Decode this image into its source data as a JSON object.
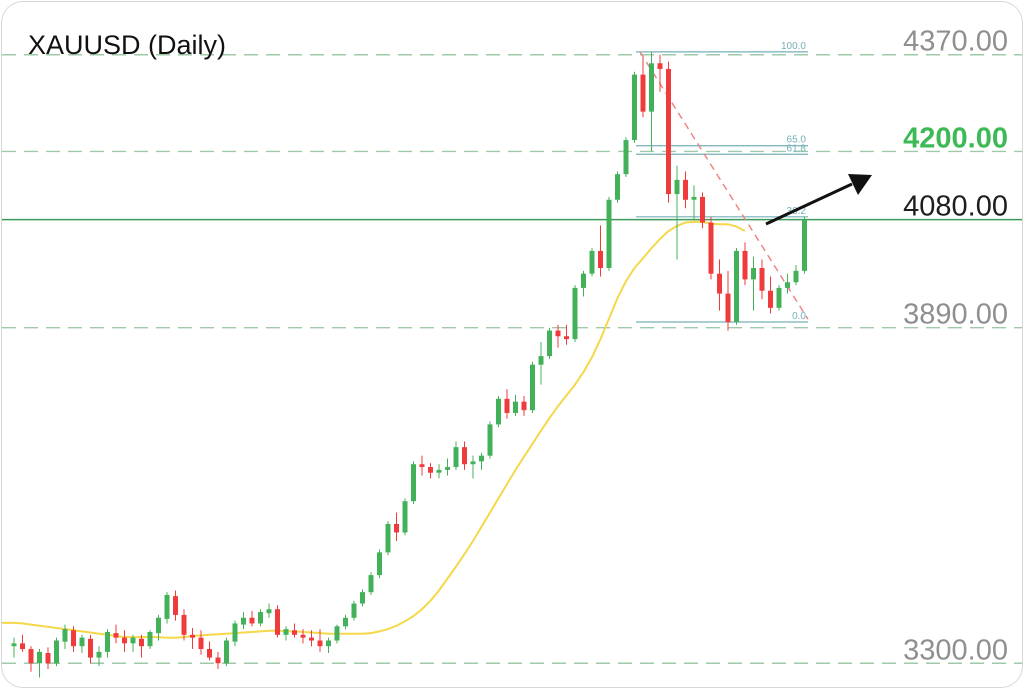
{
  "chart_data": {
    "type": "candlestick",
    "title": "XAUUSD (Daily)",
    "ylim": [
      3260,
      4410
    ],
    "grid": false,
    "levels": [
      {
        "value": 4370,
        "label": "4370.00",
        "color": "#8f8f8f",
        "style": "dashed"
      },
      {
        "value": 4200,
        "label": "4200.00",
        "color": "#3dba55",
        "style": "dashed"
      },
      {
        "value": 4080,
        "label": "4080.00",
        "color": "#1e1e1e",
        "style": "solid"
      },
      {
        "value": 3890,
        "label": "3890.00",
        "color": "#8f8f8f",
        "style": "dashed"
      },
      {
        "value": 3300,
        "label": "3300.00",
        "color": "#8f8f8f",
        "style": "dashed"
      }
    ],
    "fibonacci": [
      {
        "ratio": "100.0",
        "value": 4375
      },
      {
        "ratio": "65.0",
        "value": 4210
      },
      {
        "ratio": "61.8",
        "value": 4195
      },
      {
        "ratio": "38.2",
        "value": 4085
      },
      {
        "ratio": "0.0",
        "value": 3900
      }
    ],
    "colors": {
      "up": "#43b15a",
      "down": "#ef3b3b",
      "ma": "#f5d84a",
      "fib": "#74b0b8",
      "trend": "#ef7f7f",
      "arrow": "#111111",
      "level_dash": "#9fc9a9",
      "level_solid": "#3d9a5a"
    },
    "ma": [
      3371,
      3370,
      3368,
      3366,
      3364,
      3362,
      3360,
      3358,
      3356,
      3354,
      3352,
      3350,
      3348,
      3346,
      3346,
      3346,
      3346,
      3346,
      3345,
      3345,
      3346,
      3348,
      3349,
      3350,
      3351,
      3352,
      3353,
      3354,
      3355,
      3356,
      3357,
      3357,
      3356,
      3356,
      3355,
      3354,
      3353,
      3352,
      3352,
      3352,
      3352,
      3352,
      3353,
      3356,
      3360,
      3366,
      3374,
      3383,
      3395,
      3410,
      3428,
      3449,
      3470,
      3492,
      3515,
      3540,
      3565,
      3590,
      3615,
      3640,
      3663,
      3686,
      3709,
      3731,
      3752,
      3771,
      3790,
      3812,
      3838,
      3870,
      3906,
      3942,
      3972,
      3995,
      4012,
      4030,
      4046,
      4060,
      4069,
      4075,
      4076,
      4076,
      4073,
      4072,
      4072,
      4068,
      4060
    ],
    "candles": [
      {
        "o": 3330,
        "h": 3345,
        "l": 3310,
        "c": 3335
      },
      {
        "o": 3335,
        "h": 3350,
        "l": 3320,
        "c": 3325
      },
      {
        "o": 3325,
        "h": 3330,
        "l": 3285,
        "c": 3300
      },
      {
        "o": 3300,
        "h": 3325,
        "l": 3275,
        "c": 3320
      },
      {
        "o": 3318,
        "h": 3328,
        "l": 3290,
        "c": 3300
      },
      {
        "o": 3300,
        "h": 3345,
        "l": 3295,
        "c": 3340
      },
      {
        "o": 3338,
        "h": 3368,
        "l": 3325,
        "c": 3360
      },
      {
        "o": 3358,
        "h": 3365,
        "l": 3320,
        "c": 3330
      },
      {
        "o": 3330,
        "h": 3350,
        "l": 3318,
        "c": 3345
      },
      {
        "o": 3343,
        "h": 3350,
        "l": 3300,
        "c": 3310
      },
      {
        "o": 3310,
        "h": 3330,
        "l": 3295,
        "c": 3320
      },
      {
        "o": 3320,
        "h": 3360,
        "l": 3310,
        "c": 3355
      },
      {
        "o": 3353,
        "h": 3368,
        "l": 3335,
        "c": 3345
      },
      {
        "o": 3345,
        "h": 3358,
        "l": 3320,
        "c": 3335
      },
      {
        "o": 3335,
        "h": 3350,
        "l": 3320,
        "c": 3345
      },
      {
        "o": 3343,
        "h": 3350,
        "l": 3310,
        "c": 3330
      },
      {
        "o": 3330,
        "h": 3358,
        "l": 3325,
        "c": 3355
      },
      {
        "o": 3353,
        "h": 3385,
        "l": 3340,
        "c": 3380
      },
      {
        "o": 3378,
        "h": 3425,
        "l": 3370,
        "c": 3420
      },
      {
        "o": 3418,
        "h": 3428,
        "l": 3375,
        "c": 3385
      },
      {
        "o": 3385,
        "h": 3395,
        "l": 3340,
        "c": 3350
      },
      {
        "o": 3350,
        "h": 3362,
        "l": 3325,
        "c": 3345
      },
      {
        "o": 3345,
        "h": 3358,
        "l": 3315,
        "c": 3325
      },
      {
        "o": 3325,
        "h": 3338,
        "l": 3305,
        "c": 3310
      },
      {
        "o": 3310,
        "h": 3320,
        "l": 3290,
        "c": 3300
      },
      {
        "o": 3300,
        "h": 3345,
        "l": 3295,
        "c": 3340
      },
      {
        "o": 3338,
        "h": 3375,
        "l": 3330,
        "c": 3370
      },
      {
        "o": 3368,
        "h": 3390,
        "l": 3360,
        "c": 3380
      },
      {
        "o": 3380,
        "h": 3392,
        "l": 3365,
        "c": 3370
      },
      {
        "o": 3370,
        "h": 3395,
        "l": 3365,
        "c": 3390
      },
      {
        "o": 3388,
        "h": 3405,
        "l": 3380,
        "c": 3395
      },
      {
        "o": 3395,
        "h": 3402,
        "l": 3345,
        "c": 3350
      },
      {
        "o": 3350,
        "h": 3365,
        "l": 3340,
        "c": 3360
      },
      {
        "o": 3358,
        "h": 3370,
        "l": 3345,
        "c": 3350
      },
      {
        "o": 3350,
        "h": 3360,
        "l": 3335,
        "c": 3345
      },
      {
        "o": 3345,
        "h": 3358,
        "l": 3330,
        "c": 3340
      },
      {
        "o": 3340,
        "h": 3360,
        "l": 3320,
        "c": 3330
      },
      {
        "o": 3330,
        "h": 3345,
        "l": 3318,
        "c": 3340
      },
      {
        "o": 3340,
        "h": 3368,
        "l": 3335,
        "c": 3365
      },
      {
        "o": 3365,
        "h": 3385,
        "l": 3360,
        "c": 3380
      },
      {
        "o": 3380,
        "h": 3410,
        "l": 3375,
        "c": 3405
      },
      {
        "o": 3405,
        "h": 3430,
        "l": 3400,
        "c": 3425
      },
      {
        "o": 3425,
        "h": 3460,
        "l": 3420,
        "c": 3455
      },
      {
        "o": 3455,
        "h": 3500,
        "l": 3450,
        "c": 3495
      },
      {
        "o": 3495,
        "h": 3550,
        "l": 3490,
        "c": 3545
      },
      {
        "o": 3545,
        "h": 3565,
        "l": 3515,
        "c": 3530
      },
      {
        "o": 3530,
        "h": 3590,
        "l": 3525,
        "c": 3585
      },
      {
        "o": 3585,
        "h": 3655,
        "l": 3580,
        "c": 3650
      },
      {
        "o": 3650,
        "h": 3665,
        "l": 3630,
        "c": 3645
      },
      {
        "o": 3645,
        "h": 3652,
        "l": 3625,
        "c": 3635
      },
      {
        "o": 3635,
        "h": 3650,
        "l": 3625,
        "c": 3640
      },
      {
        "o": 3640,
        "h": 3660,
        "l": 3630,
        "c": 3645
      },
      {
        "o": 3645,
        "h": 3690,
        "l": 3640,
        "c": 3680
      },
      {
        "o": 3680,
        "h": 3690,
        "l": 3640,
        "c": 3650
      },
      {
        "o": 3650,
        "h": 3665,
        "l": 3625,
        "c": 3655
      },
      {
        "o": 3655,
        "h": 3670,
        "l": 3640,
        "c": 3665
      },
      {
        "o": 3665,
        "h": 3725,
        "l": 3660,
        "c": 3720
      },
      {
        "o": 3720,
        "h": 3770,
        "l": 3715,
        "c": 3765
      },
      {
        "o": 3765,
        "h": 3782,
        "l": 3730,
        "c": 3740
      },
      {
        "o": 3740,
        "h": 3772,
        "l": 3735,
        "c": 3760
      },
      {
        "o": 3760,
        "h": 3770,
        "l": 3735,
        "c": 3745
      },
      {
        "o": 3745,
        "h": 3830,
        "l": 3740,
        "c": 3825
      },
      {
        "o": 3825,
        "h": 3865,
        "l": 3790,
        "c": 3840
      },
      {
        "o": 3840,
        "h": 3890,
        "l": 3835,
        "c": 3885
      },
      {
        "o": 3885,
        "h": 3895,
        "l": 3855,
        "c": 3875
      },
      {
        "o": 3875,
        "h": 3895,
        "l": 3860,
        "c": 3870
      },
      {
        "o": 3870,
        "h": 3965,
        "l": 3865,
        "c": 3960
      },
      {
        "o": 3960,
        "h": 3990,
        "l": 3945,
        "c": 3985
      },
      {
        "o": 3985,
        "h": 4030,
        "l": 3980,
        "c": 4025
      },
      {
        "o": 4025,
        "h": 4070,
        "l": 3980,
        "c": 3995
      },
      {
        "o": 3995,
        "h": 4120,
        "l": 3990,
        "c": 4115
      },
      {
        "o": 4115,
        "h": 4165,
        "l": 4110,
        "c": 4160
      },
      {
        "o": 4160,
        "h": 4225,
        "l": 4155,
        "c": 4220
      },
      {
        "o": 4220,
        "h": 4340,
        "l": 4215,
        "c": 4335
      },
      {
        "o": 4335,
        "h": 4365,
        "l": 4260,
        "c": 4270
      },
      {
        "o": 4270,
        "h": 4375,
        "l": 4200,
        "c": 4355
      },
      {
        "o": 4355,
        "h": 4370,
        "l": 4305,
        "c": 4345
      },
      {
        "o": 4345,
        "h": 4358,
        "l": 4110,
        "c": 4125
      },
      {
        "o": 4125,
        "h": 4175,
        "l": 4010,
        "c": 4150
      },
      {
        "o": 4150,
        "h": 4165,
        "l": 4100,
        "c": 4115
      },
      {
        "o": 4115,
        "h": 4140,
        "l": 4080,
        "c": 4120
      },
      {
        "o": 4120,
        "h": 4128,
        "l": 4065,
        "c": 4075
      },
      {
        "o": 4075,
        "h": 4085,
        "l": 3975,
        "c": 3985
      },
      {
        "o": 3985,
        "h": 4010,
        "l": 3920,
        "c": 3950
      },
      {
        "o": 3950,
        "h": 3990,
        "l": 3885,
        "c": 3900
      },
      {
        "o": 3900,
        "h": 4030,
        "l": 3895,
        "c": 4025
      },
      {
        "o": 4025,
        "h": 4040,
        "l": 3965,
        "c": 3975
      },
      {
        "o": 3975,
        "h": 4015,
        "l": 3920,
        "c": 3995
      },
      {
        "o": 3995,
        "h": 4010,
        "l": 3940,
        "c": 3955
      },
      {
        "o": 3955,
        "h": 3980,
        "l": 3915,
        "c": 3925
      },
      {
        "o": 3925,
        "h": 3965,
        "l": 3920,
        "c": 3960
      },
      {
        "o": 3960,
        "h": 3985,
        "l": 3950,
        "c": 3970
      },
      {
        "o": 3970,
        "h": 4000,
        "l": 3965,
        "c": 3990
      },
      {
        "o": 3990,
        "h": 4085,
        "l": 3985,
        "c": 4080
      }
    ]
  }
}
